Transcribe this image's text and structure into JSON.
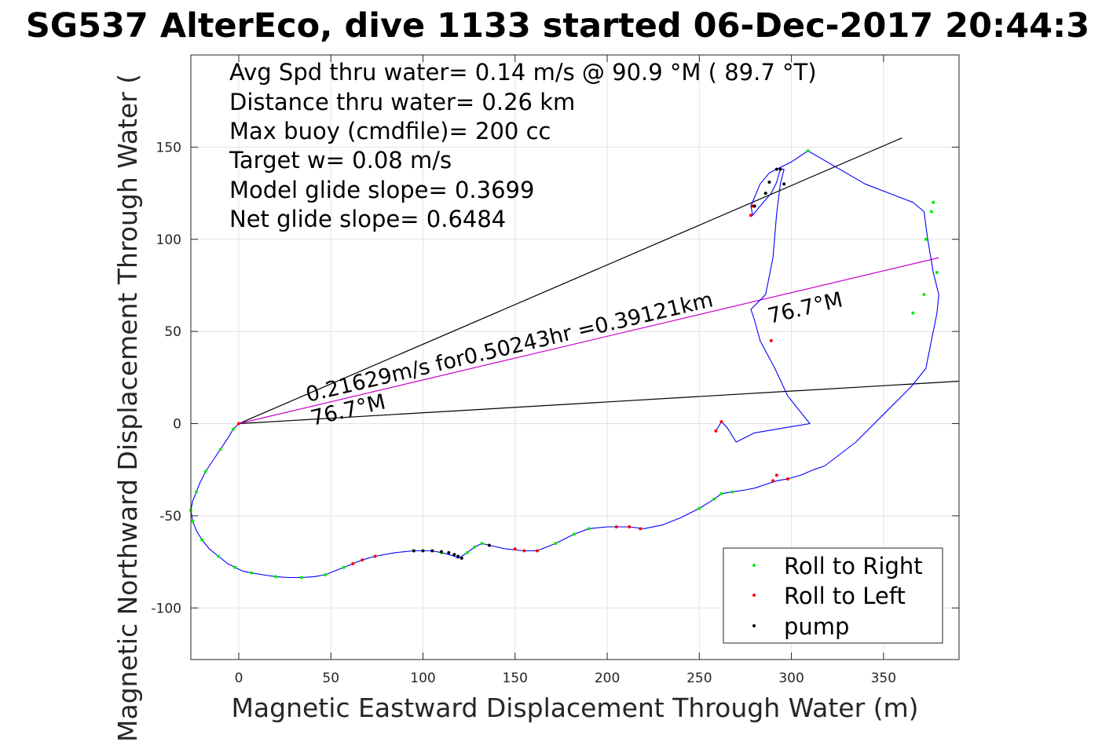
{
  "chart_data": {
    "type": "line",
    "title": "SG537 AlterEco, dive 1133 started 06-Dec-2017 20:44:3",
    "xlabel": "Magnetic Eastward Displacement Through Water (m)",
    "ylabel": "Magnetic Northward Displacement Through Water (",
    "xlim": [
      -26,
      391
    ],
    "ylim": [
      -128,
      200
    ],
    "xticks": [
      0,
      50,
      100,
      150,
      200,
      250,
      300,
      350
    ],
    "yticks": [
      -100,
      -50,
      0,
      50,
      100,
      150
    ],
    "grid": true,
    "legend_position": "bottom-right",
    "info_lines": [
      "Avg Spd thru water=  0.14 m/s @  90.9 °M ( 89.7 °T)",
      "Distance thru water=  0.26 km",
      "Max buoy (cmdfile)= 200 cc",
      "Target w= 0.08 m/s",
      "Model glide slope= 0.3699",
      "Net glide slope= 0.6484"
    ],
    "annotations": {
      "current_text": "0.21629m/s for0.50243hr =0.39121km",
      "heading_start": "76.7°M",
      "heading_end": "76.7°M"
    },
    "reference_lines": [
      {
        "x": [
          0,
          360
        ],
        "y": [
          0,
          155
        ],
        "color": "#000000"
      },
      {
        "x": [
          0,
          391
        ],
        "y": [
          0,
          23
        ],
        "color": "#000000"
      },
      {
        "x": [
          0,
          380
        ],
        "y": [
          0,
          90
        ],
        "color": "#cc00cc"
      }
    ],
    "track": {
      "color": "#0000ff",
      "x": [
        0,
        -3,
        -6,
        -10,
        -14,
        -18,
        -21,
        -23,
        -25,
        -26,
        -25,
        -23,
        -20,
        -16,
        -11,
        -6,
        -2,
        2,
        7,
        13,
        20,
        27,
        34,
        41,
        47,
        52,
        57,
        62,
        67,
        74,
        85,
        95,
        100,
        105,
        110,
        114,
        117,
        119,
        121,
        124,
        128,
        132,
        136,
        145,
        155,
        162,
        172,
        182,
        190,
        200,
        212,
        220,
        230,
        240,
        250,
        258,
        262,
        268,
        275,
        280,
        286,
        292,
        298,
        305,
        312,
        318,
        335,
        350,
        365,
        373,
        376,
        379,
        380,
        377,
        374,
        372,
        366,
        340,
        309,
        300,
        292,
        288,
        283,
        278,
        279,
        283,
        289,
        292,
        294,
        296,
        294,
        292,
        290,
        286,
        278,
        280,
        283,
        291,
        298,
        310,
        280,
        270,
        265,
        262,
        259
      ],
      "y": [
        0,
        -3,
        -8,
        -14,
        -20,
        -26,
        -32,
        -37,
        -42,
        -47,
        -53,
        -58,
        -63,
        -68,
        -72,
        -76,
        -78,
        -80,
        -81,
        -82,
        -83,
        -83.5,
        -83.5,
        -83,
        -82,
        -80,
        -78,
        -76,
        -74,
        -72,
        -70,
        -69,
        -69,
        -69,
        -70,
        -71,
        -72,
        -73,
        -72,
        -70,
        -67,
        -65,
        -66,
        -68,
        -69,
        -69,
        -65,
        -60,
        -57,
        -56,
        -56,
        -57,
        -55,
        -51,
        -46,
        -41,
        -38,
        -37,
        -36,
        -35,
        -33,
        -31,
        -30,
        -28,
        -25,
        -23,
        -10,
        5,
        20,
        30,
        45,
        60,
        70,
        82,
        100,
        115,
        120,
        130,
        148,
        142,
        138,
        136,
        130,
        118,
        113,
        118,
        125,
        131,
        138,
        138,
        130,
        114,
        90,
        70,
        62,
        56,
        45,
        30,
        15,
        0,
        -5,
        -10,
        -2,
        1,
        -4
      ]
    },
    "series": [
      {
        "name": "Roll to Right",
        "color": "#00ee00",
        "x": [
          -3,
          -10,
          -18,
          -23,
          -26,
          -25,
          -20,
          -11,
          -2,
          7,
          20,
          34,
          47,
          57,
          110,
          124,
          128,
          132,
          172,
          182,
          190,
          250,
          258,
          262,
          268,
          309,
          373,
          376,
          377,
          379,
          372,
          366
        ],
        "y": [
          -3,
          -14,
          -26,
          -37,
          -47,
          -53,
          -63,
          -72,
          -78,
          -81,
          -83,
          -83.5,
          -82,
          -78,
          -70,
          -70,
          -67,
          -65,
          -65,
          -60,
          -57,
          -46,
          -41,
          -38,
          -37,
          148,
          100,
          115,
          120,
          82,
          70,
          60
        ]
      },
      {
        "name": "Roll to Left",
        "color": "#ff0000",
        "x": [
          0,
          62,
          67,
          74,
          150,
          155,
          162,
          205,
          212,
          218,
          290,
          298,
          292,
          289,
          278,
          279,
          262,
          259
        ],
        "y": [
          0,
          -76,
          -74,
          -72,
          -68,
          -69,
          -69,
          -56,
          -56,
          -57,
          -31,
          -30,
          -28,
          45,
          113,
          118,
          1,
          -4
        ]
      },
      {
        "name": "pump",
        "color": "#000000",
        "x": [
          95,
          100,
          105,
          110,
          114,
          117,
          119,
          121,
          136,
          288,
          292,
          294,
          296,
          286,
          280
        ],
        "y": [
          -69,
          -69,
          -69,
          -69.5,
          -70,
          -71,
          -72,
          -73,
          -66,
          131,
          138,
          138,
          130,
          125,
          118
        ]
      }
    ]
  }
}
